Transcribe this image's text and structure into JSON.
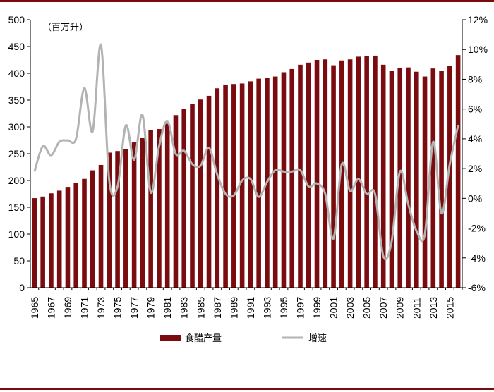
{
  "chart_data": {
    "type": "bar",
    "unit_label": "（百万升）",
    "categories": [
      1965,
      1966,
      1967,
      1968,
      1969,
      1970,
      1971,
      1972,
      1973,
      1974,
      1975,
      1976,
      1977,
      1978,
      1979,
      1980,
      1981,
      1982,
      1983,
      1984,
      1985,
      1986,
      1987,
      1988,
      1989,
      1990,
      1991,
      1992,
      1993,
      1994,
      1995,
      1996,
      1997,
      1998,
      1999,
      2000,
      2001,
      2002,
      2003,
      2004,
      2005,
      2006,
      2007,
      2008,
      2009,
      2010,
      2011,
      2012,
      2013,
      2014,
      2015,
      2016
    ],
    "x_tick_labels": [
      "1965",
      "1967",
      "1969",
      "1971",
      "1973",
      "1975",
      "1977",
      "1979",
      "1981",
      "1983",
      "1985",
      "1987",
      "1989",
      "1991",
      "1993",
      "1995",
      "1997",
      "1999",
      "2001",
      "2003",
      "2005",
      "2007",
      "2009",
      "2011",
      "2013",
      "2015"
    ],
    "y_left": {
      "ylim": [
        0,
        500
      ],
      "ticks": [
        "0",
        "50",
        "100",
        "150",
        "200",
        "250",
        "300",
        "350",
        "400",
        "450",
        "500"
      ]
    },
    "y_right": {
      "ylim": [
        -6,
        12
      ],
      "ticks": [
        "-6%",
        "-4%",
        "-2%",
        "0%",
        "2%",
        "4%",
        "6%",
        "8%",
        "10%",
        "12%"
      ]
    },
    "series": [
      {
        "name": "食醋产量",
        "type": "bar",
        "axis": "left",
        "color": "#7a0c10",
        "values": [
          167,
          170,
          176,
          181,
          188,
          195,
          203,
          219,
          229,
          252,
          255,
          258,
          271,
          279,
          294,
          296,
          306,
          322,
          333,
          343,
          351,
          358,
          372,
          379,
          380,
          381,
          385,
          390,
          391,
          394,
          402,
          408,
          416,
          420,
          425,
          426,
          415,
          424,
          426,
          431,
          432,
          433,
          416,
          404,
          410,
          411,
          403,
          394,
          409,
          405,
          414,
          434
        ]
      },
      {
        "name": "增速",
        "type": "line",
        "axis": "right",
        "color": "#b3b3b3",
        "values": [
          1.8,
          3.5,
          2.9,
          3.8,
          3.9,
          4.0,
          7.4,
          4.5,
          10.3,
          1.2,
          0.8,
          4.9,
          2.6,
          5.6,
          0.4,
          3.5,
          5.2,
          3.0,
          3.2,
          2.3,
          2.2,
          3.4,
          1.6,
          0.3,
          0.2,
          1.2,
          1.3,
          0.1,
          1.1,
          1.9,
          1.8,
          1.8,
          1.9,
          0.8,
          1.0,
          0.3,
          -2.7,
          2.3,
          0.5,
          1.3,
          0.3,
          0.3,
          -3.9,
          -2.9,
          1.8,
          -0.4,
          -2.2,
          -2.4,
          3.8,
          -1.0,
          2.3,
          4.9
        ]
      }
    ],
    "legend_position": "bottom",
    "grid": false
  }
}
